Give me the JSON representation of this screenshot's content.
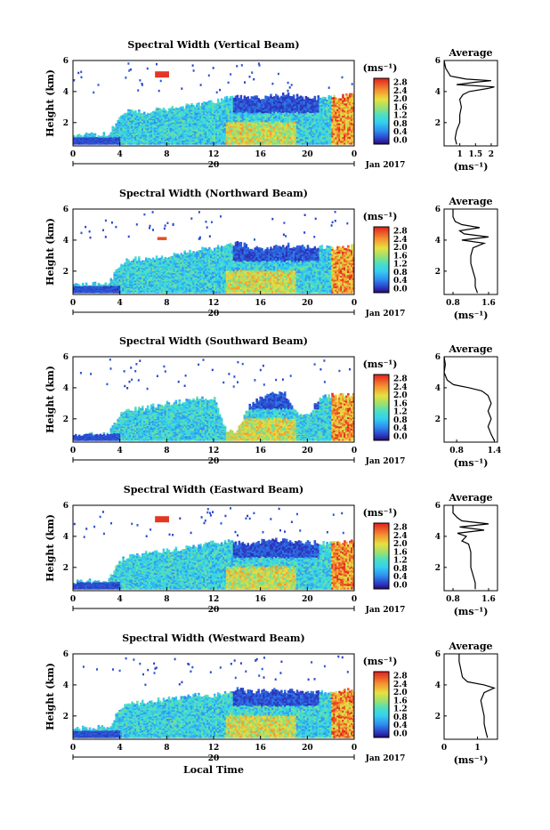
{
  "chart_data": [
    {
      "type": "heatmap",
      "title": "Spectral Width (Vertical Beam)",
      "ylabel": "Height (km)",
      "ylim": [
        0.5,
        6
      ],
      "yticks": [
        2,
        4,
        6
      ],
      "xlim": [
        0,
        24
      ],
      "xticks": [
        {
          "v": 0,
          "t": "0"
        },
        {
          "v": 4,
          "t": "4"
        },
        {
          "v": 8,
          "t": "8"
        },
        {
          "v": 12,
          "t": "12"
        },
        {
          "v": 16,
          "t": "16"
        },
        {
          "v": 20,
          "t": "20"
        },
        {
          "v": 24,
          "t": "0"
        }
      ],
      "date_day": "20",
      "date_month": "Jan 2017",
      "colorbar": {
        "unit": "(ms⁻¹)",
        "ticks": [
          "0.0",
          "0.4",
          "0.8",
          "1.2",
          "1.6",
          "2.0",
          "2.4",
          "2.8"
        ],
        "range": [
          0,
          2.8
        ]
      },
      "layer_top": [
        1.2,
        1.2,
        1.2,
        1.3,
        2.6,
        2.8,
        2.6,
        2.8,
        2.9,
        3.0,
        3.1,
        3.3,
        3.4,
        3.6,
        3.7,
        3.6,
        3.6,
        3.7,
        3.8,
        3.7,
        3.6,
        3.6,
        3.6,
        3.7,
        3.8
      ],
      "patch": {
        "x": [
          7,
          8.2
        ],
        "y": [
          4.9,
          5.3
        ],
        "value": 2.7
      },
      "avg_profile": {
        "title": "Average",
        "xlabel": "(ms⁻¹)",
        "xticks": [
          "1",
          "1.5",
          "2"
        ],
        "xlim": [
          0.5,
          2.2
        ],
        "ylim": [
          0.5,
          6
        ],
        "yticks": [
          2,
          4,
          6
        ],
        "heights": [
          0.6,
          1.0,
          1.5,
          2.0,
          2.5,
          3.0,
          3.5,
          3.8,
          4.0,
          4.2,
          4.3,
          4.45,
          4.6,
          4.7,
          4.8,
          5.0,
          5.5,
          6.0
        ],
        "values": [
          0.9,
          0.85,
          0.9,
          1.0,
          1.0,
          1.05,
          1.0,
          1.1,
          1.3,
          1.9,
          2.1,
          0.9,
          1.5,
          2.0,
          1.2,
          0.7,
          0.55,
          0.5
        ]
      }
    },
    {
      "type": "heatmap",
      "title": "Spectral Width (Northward Beam)",
      "ylabel": "Height (km)",
      "ylim": [
        0.5,
        6
      ],
      "yticks": [
        2,
        4,
        6
      ],
      "xlim": [
        0,
        24
      ],
      "xticks": [
        {
          "v": 0,
          "t": "0"
        },
        {
          "v": 4,
          "t": "4"
        },
        {
          "v": 8,
          "t": "8"
        },
        {
          "v": 12,
          "t": "12"
        },
        {
          "v": 16,
          "t": "16"
        },
        {
          "v": 20,
          "t": "20"
        },
        {
          "v": 24,
          "t": "0"
        }
      ],
      "date_day": "20",
      "date_month": "Jan 2017",
      "colorbar": {
        "unit": "(ms⁻¹)",
        "ticks": [
          "0.0",
          "0.4",
          "0.8",
          "1.2",
          "1.6",
          "2.0",
          "2.4",
          "2.8"
        ],
        "range": [
          0,
          2.8
        ]
      },
      "layer_top": [
        1.1,
        1.1,
        1.2,
        1.2,
        2.5,
        2.8,
        2.8,
        2.9,
        3.0,
        3.1,
        3.3,
        3.4,
        3.5,
        3.7,
        3.8,
        3.6,
        3.4,
        3.6,
        3.7,
        3.6,
        3.6,
        3.6,
        3.5,
        3.5,
        3.6
      ],
      "patch": {
        "x": [
          7.2,
          8
        ],
        "y": [
          4.0,
          4.2
        ],
        "value": 2.6
      },
      "avg_profile": {
        "title": "Average",
        "xlabel": "(ms⁻¹)",
        "xticks": [
          "0.8",
          "1.6"
        ],
        "xlim": [
          0.6,
          1.8
        ],
        "ylim": [
          0.5,
          6
        ],
        "yticks": [
          2,
          4,
          6
        ],
        "heights": [
          0.6,
          1.0,
          1.5,
          2.0,
          2.5,
          3.0,
          3.5,
          3.8,
          4.0,
          4.2,
          4.4,
          4.6,
          4.8,
          5.0,
          5.2,
          5.5,
          6.0
        ],
        "values": [
          1.35,
          1.3,
          1.3,
          1.25,
          1.2,
          1.2,
          1.25,
          1.5,
          1.0,
          1.6,
          1.05,
          0.95,
          1.4,
          1.0,
          0.85,
          0.8,
          0.8
        ]
      }
    },
    {
      "type": "heatmap",
      "title": "Spectral Width (Southward Beam)",
      "ylabel": "Height (km)",
      "ylim": [
        0.5,
        6
      ],
      "yticks": [
        2,
        4,
        6
      ],
      "xlim": [
        0,
        24
      ],
      "xticks": [
        {
          "v": 0,
          "t": "0"
        },
        {
          "v": 4,
          "t": "4"
        },
        {
          "v": 8,
          "t": "8"
        },
        {
          "v": 12,
          "t": "12"
        },
        {
          "v": 16,
          "t": "16"
        },
        {
          "v": 20,
          "t": "20"
        },
        {
          "v": 24,
          "t": "0"
        }
      ],
      "date_day": "20",
      "date_month": "Jan 2017",
      "colorbar": {
        "unit": "(ms⁻¹)",
        "ticks": [
          "0.0",
          "0.4",
          "0.8",
          "1.2",
          "1.6",
          "2.0",
          "2.4",
          "2.8"
        ],
        "range": [
          0,
          2.8
        ]
      },
      "layer_top": [
        1.0,
        1.0,
        1.1,
        1.1,
        2.3,
        2.6,
        2.7,
        2.9,
        3.0,
        3.1,
        3.3,
        3.4,
        3.3,
        1.2,
        1.3,
        2.9,
        3.4,
        3.7,
        3.6,
        2.3,
        2.2,
        3.4,
        3.5,
        3.5,
        3.6
      ],
      "patch": null,
      "avg_profile": {
        "title": "Average",
        "xlabel": "(ms⁻¹)",
        "xticks": [
          "0.8",
          "1.4"
        ],
        "xlim": [
          0.6,
          1.45
        ],
        "ylim": [
          0.5,
          6
        ],
        "yticks": [
          2,
          4,
          6
        ],
        "heights": [
          0.6,
          1.0,
          1.5,
          2.0,
          2.5,
          3.0,
          3.5,
          3.8,
          4.0,
          4.2,
          4.5,
          5.0,
          5.5,
          6.0
        ],
        "values": [
          1.4,
          1.35,
          1.3,
          1.35,
          1.3,
          1.35,
          1.3,
          1.2,
          1.0,
          0.75,
          0.65,
          0.6,
          0.62,
          0.6
        ]
      }
    },
    {
      "type": "heatmap",
      "title": "Spectral Width (Eastward Beam)",
      "ylabel": "Height (km)",
      "ylim": [
        0.5,
        6
      ],
      "yticks": [
        2,
        4,
        6
      ],
      "xlim": [
        0,
        24
      ],
      "xticks": [
        {
          "v": 0,
          "t": "0"
        },
        {
          "v": 4,
          "t": "4"
        },
        {
          "v": 8,
          "t": "8"
        },
        {
          "v": 12,
          "t": "12"
        },
        {
          "v": 16,
          "t": "16"
        },
        {
          "v": 20,
          "t": "20"
        },
        {
          "v": 24,
          "t": "0"
        }
      ],
      "date_day": "20",
      "date_month": "Jan 2017",
      "colorbar": {
        "unit": "(ms⁻¹)",
        "ticks": [
          "0.0",
          "0.4",
          "0.8",
          "1.2",
          "1.6",
          "2.0",
          "2.4",
          "2.8"
        ],
        "range": [
          0,
          2.8
        ]
      },
      "layer_top": [
        1.1,
        1.1,
        1.2,
        1.2,
        2.5,
        2.8,
        2.9,
        3.0,
        3.1,
        3.2,
        3.3,
        3.5,
        3.6,
        3.7,
        3.6,
        3.5,
        3.7,
        3.8,
        3.7,
        3.6,
        3.6,
        3.6,
        3.6,
        3.6,
        3.7
      ],
      "patch": {
        "x": [
          7,
          8.2
        ],
        "y": [
          4.9,
          5.3
        ],
        "value": 2.7
      },
      "avg_profile": {
        "title": "Average",
        "xlabel": "(ms⁻¹)",
        "xticks": [
          "0.8",
          "1.6"
        ],
        "xlim": [
          0.6,
          1.8
        ],
        "ylim": [
          0.5,
          6
        ],
        "yticks": [
          2,
          4,
          6
        ],
        "heights": [
          0.6,
          1.0,
          1.5,
          2.0,
          2.5,
          3.0,
          3.5,
          3.7,
          4.0,
          4.2,
          4.4,
          4.6,
          4.8,
          5.0,
          5.2,
          5.5,
          6.0
        ],
        "values": [
          1.3,
          1.3,
          1.25,
          1.2,
          1.2,
          1.2,
          1.15,
          1.0,
          1.1,
          0.9,
          1.5,
          0.95,
          1.6,
          1.0,
          0.9,
          0.8,
          0.8
        ]
      }
    },
    {
      "type": "heatmap",
      "title": "Spectral Width (Westward Beam)",
      "ylabel": "Height (km)",
      "ylim": [
        0.5,
        6
      ],
      "yticks": [
        2,
        4,
        6
      ],
      "xlim": [
        0,
        24
      ],
      "xticks": [
        {
          "v": 0,
          "t": "0"
        },
        {
          "v": 4,
          "t": "4"
        },
        {
          "v": 8,
          "t": "8"
        },
        {
          "v": 12,
          "t": "12"
        },
        {
          "v": 16,
          "t": "16"
        },
        {
          "v": 20,
          "t": "20"
        },
        {
          "v": 24,
          "t": "0"
        }
      ],
      "date_day": "20",
      "date_month": "Jan 2017",
      "colorbar": {
        "unit": "(ms⁻¹)",
        "ticks": [
          "0.0",
          "0.4",
          "0.8",
          "1.2",
          "1.6",
          "2.0",
          "2.4",
          "2.8"
        ],
        "range": [
          0,
          2.8
        ]
      },
      "layer_top": [
        1.2,
        1.2,
        1.3,
        1.3,
        2.6,
        2.8,
        2.9,
        3.0,
        3.1,
        3.2,
        3.3,
        3.4,
        3.3,
        3.5,
        3.7,
        3.6,
        3.6,
        3.7,
        3.6,
        3.6,
        3.6,
        3.5,
        3.5,
        3.6,
        3.7
      ],
      "patch": null,
      "xlabel": "Local Time",
      "avg_profile": {
        "title": "Average",
        "xlabel": "(ms⁻¹)",
        "xticks": [
          "0",
          "1"
        ],
        "xlim": [
          0,
          1.6
        ],
        "ylim": [
          0.5,
          6
        ],
        "yticks": [
          2,
          4,
          6
        ],
        "heights": [
          0.6,
          1.0,
          1.5,
          2.0,
          2.5,
          3.0,
          3.5,
          3.8,
          4.0,
          4.2,
          4.5,
          5.0,
          5.5,
          6.0
        ],
        "values": [
          1.3,
          1.25,
          1.2,
          1.2,
          1.15,
          1.1,
          1.2,
          1.5,
          1.2,
          0.7,
          0.55,
          0.5,
          0.45,
          0.45
        ]
      }
    }
  ]
}
